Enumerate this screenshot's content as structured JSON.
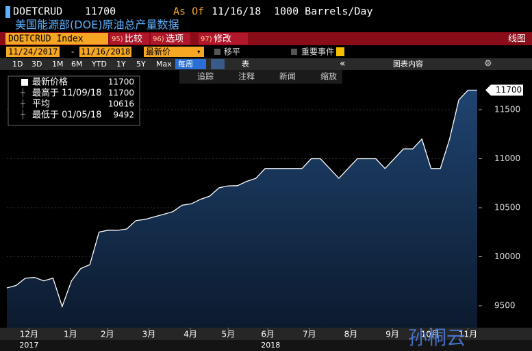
{
  "ui": {
    "ticker": "DOETCRUD",
    "as_of_label": "As Of",
    "as_of_date": "11/16/18",
    "units": "1000 Barrels/Day",
    "subtitle": "美国能源部(DOE)原油总产量数据",
    "security": "DOETCRUD Index",
    "menu": [
      {
        "key": "95)",
        "label": "比较"
      },
      {
        "key": "96)",
        "label": "选项"
      },
      {
        "key": "97)",
        "label": "修改"
      }
    ],
    "chart_kind": "线图",
    "start_date": "11/24/2017",
    "date_sep": "-",
    "end_date": "11/16/2018",
    "price_field": "最新价",
    "move_label": "移平",
    "events_label": "重要事件",
    "ranges": [
      "1D",
      "3D",
      "1M",
      "6M",
      "YTD",
      "1Y",
      "5Y",
      "Max"
    ],
    "period": "每周",
    "table_label": "表",
    "chart_content": "图表内容",
    "tools": [
      "追踪",
      "注释",
      "新闻",
      "缩放"
    ],
    "watermark": "孙桐云"
  },
  "chart_data": {
    "type": "area",
    "categories": [
      null,
      null,
      null,
      null,
      null,
      null,
      null,
      null,
      null,
      null,
      null,
      null,
      null,
      null,
      null,
      null,
      null,
      null,
      null,
      null,
      null,
      null,
      null,
      null,
      null,
      null,
      null,
      null,
      null,
      null,
      null,
      null,
      null,
      null,
      null,
      null,
      null,
      null,
      null,
      null,
      null,
      null,
      null,
      null,
      null,
      null,
      null,
      null,
      null,
      null,
      null,
      null
    ],
    "series": [
      {
        "name": "最新价格",
        "color": "#ffffff",
        "fill": "#1c3a5e",
        "values": [
          9682,
          9707,
          9780,
          9789,
          9754,
          9782,
          9492,
          9752,
          9879,
          9919,
          10251,
          10271,
          10269,
          10283,
          10369,
          10381,
          10407,
          10433,
          10460,
          10525,
          10540,
          10586,
          10619,
          10703,
          10723,
          10725,
          10769,
          10800,
          10900,
          10900,
          10900,
          10900,
          10900,
          11000,
          11000,
          10900,
          10800,
          10900,
          11000,
          11000,
          11000,
          10900,
          11000,
          11100,
          11100,
          11200,
          10900,
          10900,
          11200,
          11600,
          11700,
          11700
        ]
      }
    ],
    "stats": [
      {
        "label": "最高于 11/09/18",
        "value": 11700
      },
      {
        "label": "平均",
        "value": 10616
      },
      {
        "label": "最低于 01/05/18",
        "value": 9492
      }
    ],
    "ylim": [
      9276,
      11920
    ],
    "yticks": [
      9500,
      10000,
      10500,
      11000,
      11500
    ],
    "xticks": [
      {
        "value": 2.4,
        "label": "12月"
      },
      {
        "value": 6.9,
        "label": "1月"
      },
      {
        "value": 10.9,
        "label": "2月"
      },
      {
        "value": 15.4,
        "label": "3月"
      },
      {
        "value": 19.9,
        "label": "4月"
      },
      {
        "value": 24,
        "label": "5月"
      },
      {
        "value": 28.3,
        "label": "6月"
      },
      {
        "value": 32.8,
        "label": "7月"
      },
      {
        "value": 37.3,
        "label": "8月"
      },
      {
        "value": 41.8,
        "label": "9月"
      },
      {
        "value": 45.9,
        "label": "10月"
      },
      {
        "value": 50,
        "label": "11月"
      }
    ],
    "year_ticks": [
      {
        "value": 2.4,
        "label": "2017"
      },
      {
        "value": 28.6,
        "label": "2018"
      }
    ],
    "grid": true
  }
}
